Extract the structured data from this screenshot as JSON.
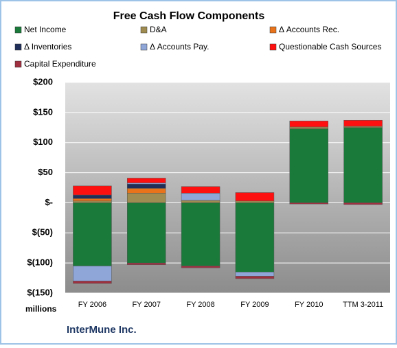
{
  "chart_data": {
    "type": "stacked_bar",
    "title": "Free Cash Flow Components",
    "categories": [
      "FY 2006",
      "FY 2007",
      "FY 2008",
      "FY 2009",
      "FY 2010",
      "TTM 3-2011"
    ],
    "series": [
      {
        "name": "Net Income",
        "color": "#1a7a3a",
        "values": [
          -105,
          -100,
          -105,
          -115,
          123,
          125
        ]
      },
      {
        "name": "D&A",
        "color": "#a08c50",
        "values": [
          3,
          16,
          4,
          3,
          3,
          2
        ]
      },
      {
        "name": "Δ Accounts Rec.",
        "color": "#e8731a",
        "values": [
          4,
          8,
          0,
          0,
          0,
          0
        ]
      },
      {
        "name": "Δ Inventories",
        "color": "#1f2f5a",
        "values": [
          6,
          7,
          0,
          0,
          0,
          0
        ]
      },
      {
        "name": "Δ Accounts Pay.",
        "color": "#8ea6d8",
        "values": [
          -25,
          2,
          12,
          -7,
          0,
          0
        ]
      },
      {
        "name": "Questionable Cash Sources",
        "color": "#ff1010",
        "values": [
          15,
          8,
          11,
          14,
          10,
          10
        ]
      },
      {
        "name": "Capital Expenditure",
        "color": "#a03040",
        "values": [
          -4,
          -3,
          -3,
          -4,
          -2,
          -3
        ]
      }
    ],
    "ylim": [
      -150,
      200
    ],
    "yticks": [
      {
        "value": -150,
        "label": "$(150)"
      },
      {
        "value": -100,
        "label": "$(100)"
      },
      {
        "value": -50,
        "label": "$(50)"
      },
      {
        "value": 0,
        "label": "$-"
      },
      {
        "value": 50,
        "label": "$50"
      },
      {
        "value": 100,
        "label": "$100"
      },
      {
        "value": 150,
        "label": "$150"
      },
      {
        "value": 200,
        "label": "$200"
      }
    ],
    "grid": true,
    "legend": "top",
    "y_unit": "millions",
    "footer": "InterMune Inc."
  }
}
